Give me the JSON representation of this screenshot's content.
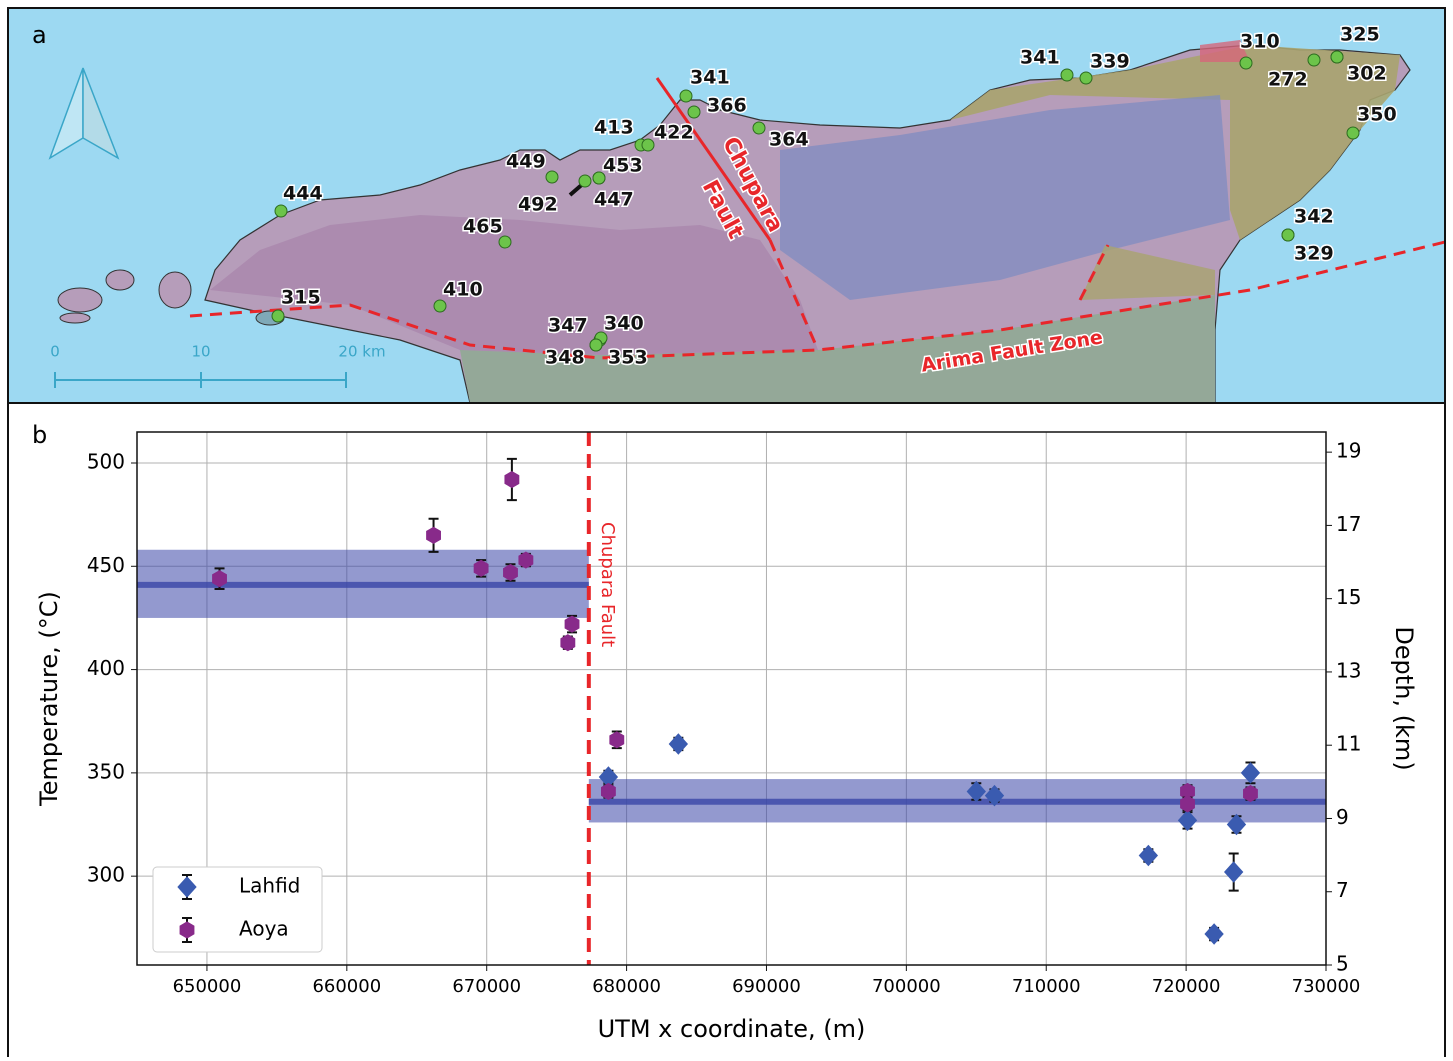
{
  "map": {
    "panel_label": "a",
    "site_labels": [
      "444",
      "315",
      "410",
      "465",
      "449",
      "492",
      "447",
      "453",
      "413",
      "422",
      "341",
      "366",
      "364",
      "347",
      "340",
      "348",
      "353",
      "341",
      "339",
      "310",
      "272",
      "325",
      "302",
      "350",
      "342",
      "329"
    ],
    "fault_labels": [
      "Chupara",
      "Fault",
      "Arima Fault Zone"
    ],
    "scale_labels": [
      "0",
      "10",
      "20 km"
    ]
  },
  "chart_data": {
    "type": "scatter",
    "panel_label": "b",
    "x_label": "UTM x coordinate, (m)",
    "y_label": "Temperature, (°C)",
    "y2_label": "Depth, (km)",
    "xlim": [
      645000,
      730000
    ],
    "xticks": [
      650000,
      660000,
      670000,
      680000,
      690000,
      700000,
      710000,
      720000,
      730000
    ],
    "ylim": [
      257,
      515
    ],
    "yticks": [
      300,
      350,
      400,
      450,
      500
    ],
    "y2lim": [
      5,
      19.55
    ],
    "y2ticks": [
      5,
      7,
      9,
      11,
      13,
      15,
      17,
      19
    ],
    "grid": true,
    "legend": "lower left",
    "series": [
      {
        "name": "Lahfid",
        "color": "#3a5bb0",
        "marker": "diamond",
        "x": [
          678700,
          683700,
          705000,
          706300,
          717300,
          720100,
          722000,
          723600,
          723400,
          724600
        ],
        "values": [
          348,
          364,
          341,
          339,
          310,
          327,
          272,
          325,
          302,
          350
        ],
        "errors": [
          3,
          3,
          4,
          3,
          3,
          4,
          3,
          4,
          9,
          5
        ]
      },
      {
        "name": "Aoya",
        "color": "#882a8a",
        "marker": "hexagon",
        "x": [
          650900,
          666200,
          669600,
          671700,
          671800,
          672800,
          675800,
          676100,
          678700,
          679300,
          720100,
          720100,
          724600
        ],
        "values": [
          444,
          465,
          449,
          447,
          492,
          453,
          413,
          422,
          341,
          366,
          341,
          335,
          340
        ],
        "errors": [
          5,
          8,
          4,
          4,
          10,
          3,
          3,
          4,
          3,
          4,
          3,
          3,
          3
        ]
      }
    ],
    "bands": [
      {
        "x": [
          645000,
          677300
        ],
        "mean": 441,
        "range": [
          425,
          458
        ],
        "color": "#3a46a8"
      },
      {
        "x": [
          677300,
          730000
        ],
        "mean": 336,
        "range": [
          326,
          347
        ],
        "color": "#3a46a8"
      }
    ],
    "annotations": [
      {
        "text": "Chupara Fault",
        "x": 677300,
        "color": "#e8262a"
      }
    ]
  }
}
